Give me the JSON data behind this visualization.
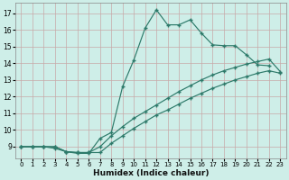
{
  "xlabel": "Humidex (Indice chaleur)",
  "background_color": "#ceeee8",
  "grid_color": "#c8a8a8",
  "line_color": "#2d7a6a",
  "xlim": [
    -0.5,
    23.5
  ],
  "ylim": [
    8.3,
    17.6
  ],
  "yticks": [
    9,
    10,
    11,
    12,
    13,
    14,
    15,
    16,
    17
  ],
  "xticks": [
    0,
    1,
    2,
    3,
    4,
    5,
    6,
    7,
    8,
    9,
    10,
    11,
    12,
    13,
    14,
    15,
    16,
    17,
    18,
    19,
    20,
    21,
    22,
    23
  ],
  "line1": {
    "x": [
      0,
      1,
      2,
      3,
      4,
      5,
      6,
      7,
      8,
      9,
      10,
      11,
      12,
      13,
      14,
      15,
      16,
      17,
      18,
      19,
      20,
      21,
      22
    ],
    "y": [
      9.0,
      9.0,
      9.0,
      9.0,
      8.7,
      8.6,
      8.6,
      9.5,
      9.85,
      12.6,
      14.2,
      16.1,
      17.2,
      16.3,
      16.3,
      16.6,
      15.8,
      15.1,
      15.05,
      15.05,
      14.5,
      13.9,
      13.85
    ]
  },
  "line2": {
    "x": [
      0,
      1,
      2,
      3,
      4,
      5,
      6,
      7,
      8,
      9,
      10,
      11,
      12,
      13,
      14,
      15,
      16,
      17,
      18,
      19,
      20,
      21,
      22,
      23
    ],
    "y": [
      9.0,
      9.0,
      9.0,
      8.9,
      8.7,
      8.65,
      8.65,
      9.0,
      9.65,
      10.2,
      10.7,
      11.1,
      11.5,
      11.9,
      12.3,
      12.65,
      13.0,
      13.3,
      13.55,
      13.75,
      13.95,
      14.1,
      14.25,
      13.5
    ]
  },
  "line3": {
    "x": [
      0,
      1,
      2,
      3,
      4,
      5,
      6,
      7,
      8,
      9,
      10,
      11,
      12,
      13,
      14,
      15,
      16,
      17,
      18,
      19,
      20,
      21,
      22,
      23
    ],
    "y": [
      9.0,
      9.0,
      9.0,
      9.0,
      8.7,
      8.65,
      8.65,
      8.65,
      9.2,
      9.65,
      10.1,
      10.5,
      10.9,
      11.2,
      11.55,
      11.9,
      12.2,
      12.5,
      12.75,
      13.0,
      13.2,
      13.4,
      13.55,
      13.4
    ]
  }
}
